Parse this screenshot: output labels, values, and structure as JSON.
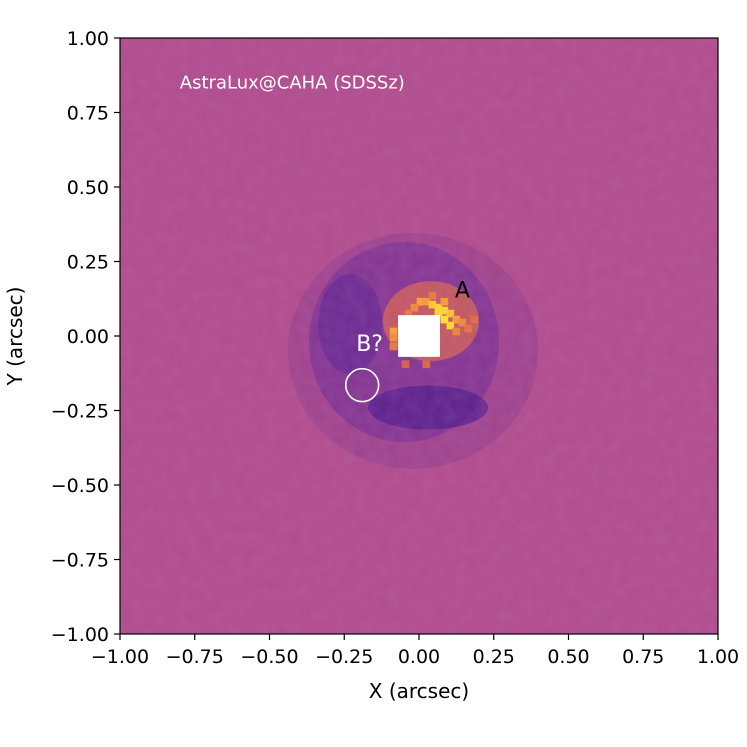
{
  "chart_data": {
    "type": "heatmap",
    "title": "",
    "xlabel": "X (arcsec)",
    "ylabel": "Y (arcsec)",
    "xlim": [
      -1.0,
      1.0
    ],
    "ylim": [
      -1.0,
      1.0
    ],
    "xticks": [
      -1.0,
      -0.75,
      -0.5,
      -0.25,
      0.0,
      0.25,
      0.5,
      0.75,
      1.0
    ],
    "yticks": [
      -1.0,
      -0.75,
      -0.5,
      -0.25,
      0.0,
      0.25,
      0.5,
      0.75,
      1.0
    ],
    "xtick_labels": [
      "−1.00",
      "−0.75",
      "−0.50",
      "−0.25",
      "0.00",
      "0.25",
      "0.50",
      "0.75",
      "1.00"
    ],
    "ytick_labels": [
      "−1.00",
      "−0.75",
      "−0.50",
      "−0.25",
      "0.00",
      "0.25",
      "0.50",
      "0.75",
      "1.00"
    ],
    "colormap": "magma-like (purple to yellow)",
    "colors": {
      "background": "#b14c8b",
      "dark": "#4a1a8a",
      "bright": "#fcd23a",
      "masked": "#ffffff"
    },
    "grid": false,
    "annotations": {
      "instrument": {
        "text": "AstraLux@CAHA (SDSSz)",
        "x": -0.8,
        "y": 0.83,
        "color": "#ffffff"
      },
      "companion_a": {
        "text": "A",
        "x": 0.12,
        "y": 0.13,
        "color": "#000000"
      },
      "companion_b": {
        "text": "B?",
        "x": -0.21,
        "y": -0.05,
        "color": "#ffffff"
      }
    },
    "b_circle": {
      "x": -0.19,
      "y": -0.165,
      "radius_arcsec": 0.055,
      "color": "#ffffff"
    },
    "masked_center": {
      "x0": -0.07,
      "x1": 0.07,
      "y0": -0.07,
      "y1": 0.07
    }
  }
}
